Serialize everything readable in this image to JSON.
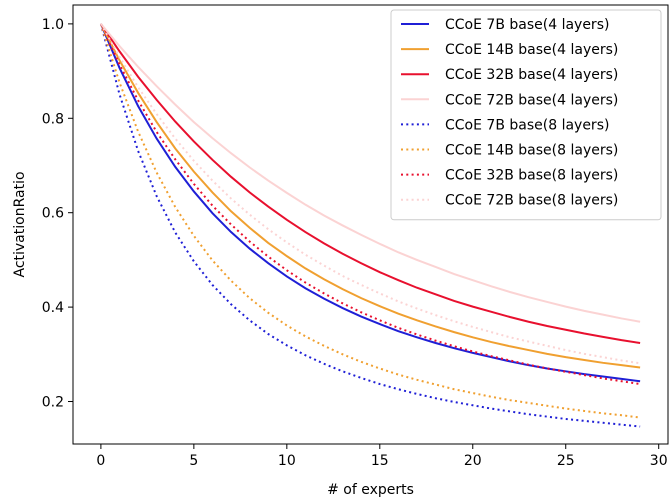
{
  "chart_data": {
    "type": "line",
    "xlabel": "# of experts",
    "ylabel": "ActivationRatio",
    "xlim": [
      -1.5,
      30.5
    ],
    "ylim": [
      0.11,
      1.04
    ],
    "xticks": [
      0,
      5,
      10,
      15,
      20,
      25,
      30
    ],
    "yticks": [
      0.2,
      0.4,
      0.6,
      0.8,
      1.0
    ],
    "xtick_labels": [
      "0",
      "5",
      "10",
      "15",
      "20",
      "25",
      "30"
    ],
    "ytick_labels": [
      "0.2",
      "0.4",
      "0.6",
      "0.8",
      "1.0"
    ],
    "legend_position": "upper right",
    "grid": false,
    "x": [
      0,
      1,
      2,
      3,
      4,
      5,
      6,
      7,
      8,
      9,
      10,
      11,
      12,
      13,
      14,
      15,
      16,
      17,
      18,
      19,
      20,
      21,
      22,
      23,
      24,
      25,
      26,
      27,
      28,
      29
    ],
    "series": [
      {
        "name": "CCoE 7B base(4 layers)",
        "color": "#1f1fd6",
        "style": "solid",
        "values": [
          1.0,
          0.907,
          0.826,
          0.757,
          0.697,
          0.645,
          0.599,
          0.559,
          0.524,
          0.493,
          0.465,
          0.44,
          0.418,
          0.398,
          0.38,
          0.364,
          0.349,
          0.336,
          0.324,
          0.313,
          0.303,
          0.294,
          0.285,
          0.277,
          0.27,
          0.264,
          0.258,
          0.253,
          0.248,
          0.243
        ]
      },
      {
        "name": "CCoE 14B base(4 layers)",
        "color": "#f0a030",
        "style": "solid",
        "values": [
          1.0,
          0.923,
          0.854,
          0.792,
          0.736,
          0.687,
          0.643,
          0.603,
          0.568,
          0.536,
          0.508,
          0.482,
          0.459,
          0.438,
          0.419,
          0.402,
          0.386,
          0.372,
          0.359,
          0.347,
          0.336,
          0.326,
          0.317,
          0.309,
          0.301,
          0.294,
          0.288,
          0.282,
          0.277,
          0.272
        ]
      },
      {
        "name": "CCoE 32B base(4 layers)",
        "color": "#e8102e",
        "style": "solid",
        "values": [
          1.0,
          0.942,
          0.888,
          0.839,
          0.793,
          0.751,
          0.712,
          0.676,
          0.643,
          0.613,
          0.585,
          0.559,
          0.535,
          0.513,
          0.493,
          0.474,
          0.457,
          0.441,
          0.427,
          0.413,
          0.401,
          0.39,
          0.379,
          0.369,
          0.36,
          0.352,
          0.344,
          0.337,
          0.33,
          0.324
        ]
      },
      {
        "name": "CCoE 72B base(4 layers)",
        "color": "#fbd3d3",
        "style": "solid",
        "values": [
          1.0,
          0.953,
          0.909,
          0.868,
          0.829,
          0.792,
          0.758,
          0.726,
          0.696,
          0.668,
          0.642,
          0.617,
          0.594,
          0.573,
          0.553,
          0.534,
          0.516,
          0.5,
          0.485,
          0.47,
          0.457,
          0.444,
          0.432,
          0.421,
          0.411,
          0.401,
          0.392,
          0.384,
          0.376,
          0.369
        ]
      },
      {
        "name": "CCoE 7B base(8 layers)",
        "color": "#1f1fd6",
        "style": "dotted",
        "values": [
          1.0,
          0.851,
          0.731,
          0.635,
          0.558,
          0.497,
          0.447,
          0.406,
          0.372,
          0.343,
          0.319,
          0.298,
          0.28,
          0.264,
          0.25,
          0.237,
          0.226,
          0.216,
          0.207,
          0.199,
          0.192,
          0.185,
          0.179,
          0.173,
          0.168,
          0.163,
          0.159,
          0.155,
          0.151,
          0.147
        ]
      },
      {
        "name": "CCoE 14B base(8 layers)",
        "color": "#f0a030",
        "style": "dotted",
        "values": [
          1.0,
          0.876,
          0.772,
          0.685,
          0.612,
          0.551,
          0.499,
          0.456,
          0.419,
          0.388,
          0.361,
          0.338,
          0.318,
          0.3,
          0.284,
          0.27,
          0.257,
          0.246,
          0.236,
          0.226,
          0.218,
          0.21,
          0.203,
          0.197,
          0.191,
          0.185,
          0.18,
          0.175,
          0.171,
          0.166
        ]
      },
      {
        "name": "CCoE 32B base(8 layers)",
        "color": "#e8102e",
        "style": "dotted",
        "values": [
          1.0,
          0.914,
          0.838,
          0.771,
          0.713,
          0.661,
          0.615,
          0.575,
          0.539,
          0.507,
          0.478,
          0.452,
          0.429,
          0.408,
          0.389,
          0.372,
          0.356,
          0.342,
          0.329,
          0.317,
          0.306,
          0.296,
          0.287,
          0.278,
          0.27,
          0.263,
          0.256,
          0.249,
          0.243,
          0.237
        ]
      },
      {
        "name": "CCoE 72B base(8 layers)",
        "color": "#fbd3d3",
        "style": "dotted",
        "values": [
          1.0,
          0.93,
          0.866,
          0.809,
          0.757,
          0.71,
          0.668,
          0.63,
          0.596,
          0.565,
          0.537,
          0.511,
          0.488,
          0.466,
          0.447,
          0.429,
          0.412,
          0.397,
          0.383,
          0.37,
          0.358,
          0.347,
          0.336,
          0.327,
          0.318,
          0.309,
          0.301,
          0.294,
          0.287,
          0.281
        ]
      }
    ]
  }
}
